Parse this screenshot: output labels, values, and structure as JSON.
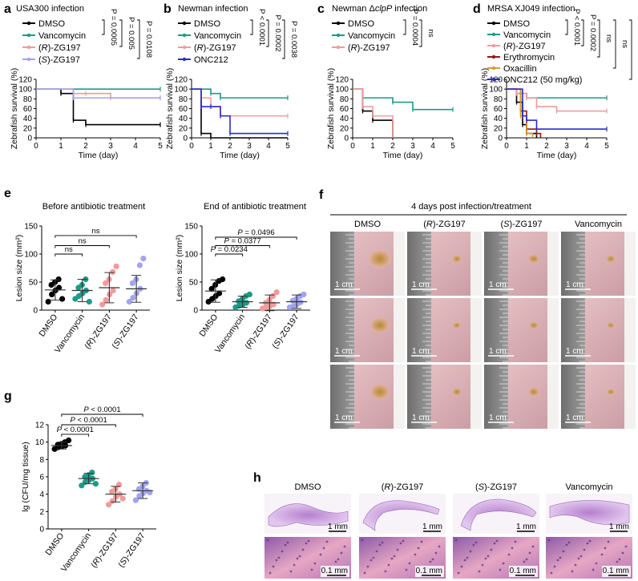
{
  "panels": {
    "a": {
      "letter": "a",
      "title": "USA300 infection",
      "stats": [
        "P = 0.0005",
        "P = 0.005",
        "P = 0.0108"
      ]
    },
    "b": {
      "letter": "b",
      "title": "Newman infection",
      "stats": [
        "P < 0.0001",
        "P = 0.0002",
        "P = 0.0038"
      ]
    },
    "c": {
      "letter": "c",
      "title": "Newman ΔclpP infection",
      "stats": [
        "P = 0.0004",
        "ns"
      ]
    },
    "d": {
      "letter": "d",
      "title": "MRSA XJ049 infection",
      "stats": [
        "P < 0.0001",
        "P = 0.0002",
        "ns",
        "ns",
        "ns"
      ]
    },
    "e": {
      "letter": "e",
      "left_title": "Before antibiotic treatment",
      "right_title": "End of antibiotic treatment",
      "left_stats": [
        "ns",
        "ns",
        "ns"
      ],
      "right_stats": [
        "P = 0.0234",
        "P = 0.0377",
        "P = 0.0496"
      ]
    },
    "f": {
      "letter": "f",
      "header": "4 days post infection/treatment",
      "columns": [
        "DMSO",
        "(R)-ZG197",
        "(S)-ZG197",
        "Vancomycin"
      ],
      "scale": "1 cm"
    },
    "g": {
      "letter": "g",
      "stats": [
        "P < 0.0001",
        "P < 0.0001",
        "P < 0.0001"
      ]
    },
    "h": {
      "letter": "h",
      "columns": [
        "DMSO",
        "(R)-ZG197",
        "(S)-ZG197",
        "Vancomycin"
      ],
      "scale_top": "1 mm",
      "scale_bottom": "0.1 mm"
    }
  },
  "colors": {
    "DMSO": "#000000",
    "Vancomycin": "#1e9a86",
    "R": "#f39a9a",
    "S": "#a3a3ee",
    "Erythromycin": "#8b1a1a",
    "Oxacillin": "#d89b2c",
    "ONC212": "#2b2bd0"
  },
  "chart_data": [
    {
      "id": "a",
      "type": "line",
      "step": true,
      "xlabel": "Time (day)",
      "ylabel": "Zebrafish survival (%)",
      "xlim": [
        0,
        5
      ],
      "ylim": [
        0,
        120
      ],
      "xticks": [
        0,
        1,
        2,
        3,
        4,
        5
      ],
      "yticks": [
        0,
        20,
        40,
        60,
        80,
        100,
        120
      ],
      "series": [
        {
          "name": "DMSO",
          "color": "#000000",
          "x": [
            0,
            1.0,
            1.5,
            2.0,
            5
          ],
          "y": [
            100,
            91,
            36,
            27,
            27
          ]
        },
        {
          "name": "Vancomycin",
          "color": "#1e9a86",
          "x": [
            0,
            5
          ],
          "y": [
            100,
            100
          ]
        },
        {
          "name": "(R)-ZG197",
          "color": "#f39a9a",
          "x": [
            0,
            1.5,
            2.0,
            3.0,
            5
          ],
          "y": [
            100,
            91,
            91,
            82,
            82
          ]
        },
        {
          "name": "(S)-ZG197",
          "color": "#a3a3ee",
          "x": [
            0,
            1.5,
            5
          ],
          "y": [
            100,
            82,
            82
          ]
        }
      ]
    },
    {
      "id": "b",
      "type": "line",
      "step": true,
      "xlabel": "Time (day)",
      "ylabel": "Zebrafish survival (%)",
      "xlim": [
        0,
        5
      ],
      "ylim": [
        0,
        120
      ],
      "xticks": [
        0,
        1,
        2,
        3,
        4,
        5
      ],
      "yticks": [
        0,
        20,
        40,
        60,
        80,
        100,
        120
      ],
      "series": [
        {
          "name": "DMSO",
          "color": "#000000",
          "x": [
            0,
            0.5,
            1.0,
            5
          ],
          "y": [
            100,
            9,
            0,
            0
          ]
        },
        {
          "name": "Vancomycin",
          "color": "#1e9a86",
          "x": [
            0,
            1.0,
            1.5,
            5
          ],
          "y": [
            100,
            91,
            82,
            82
          ]
        },
        {
          "name": "(R)-ZG197",
          "color": "#f39a9a",
          "x": [
            0,
            0.5,
            1.0,
            1.5,
            5
          ],
          "y": [
            100,
            82,
            64,
            45,
            45
          ]
        },
        {
          "name": "ONC212",
          "color": "#2b2bd0",
          "x": [
            0,
            0.5,
            1.0,
            1.5,
            2.0,
            5
          ],
          "y": [
            100,
            64,
            64,
            45,
            9,
            9
          ]
        }
      ]
    },
    {
      "id": "c",
      "type": "line",
      "step": true,
      "xlabel": "Time (day)",
      "ylabel": "Zebrafish survival (%)",
      "xlim": [
        0,
        5
      ],
      "ylim": [
        0,
        120
      ],
      "xticks": [
        0,
        1,
        2,
        3,
        4,
        5
      ],
      "yticks": [
        0,
        20,
        40,
        60,
        80,
        100,
        120
      ],
      "series": [
        {
          "name": "DMSO",
          "color": "#000000",
          "x": [
            0,
            0.5,
            1.0,
            2.0
          ],
          "y": [
            100,
            55,
            36,
            0
          ]
        },
        {
          "name": "Vancomycin",
          "color": "#1e9a86",
          "x": [
            0,
            0.5,
            2.0,
            3.0,
            5
          ],
          "y": [
            100,
            82,
            73,
            58,
            58
          ]
        },
        {
          "name": "(R)-ZG197",
          "color": "#f39a9a",
          "x": [
            0,
            0.5,
            1.0,
            2.0
          ],
          "y": [
            100,
            64,
            45,
            0
          ]
        }
      ]
    },
    {
      "id": "d",
      "type": "line",
      "step": true,
      "xlabel": "Time (day)",
      "ylabel": "Zebrafish survival (%)",
      "xlim": [
        0,
        5
      ],
      "ylim": [
        0,
        120
      ],
      "xticks": [
        0,
        1,
        2,
        3,
        4,
        5
      ],
      "yticks": [
        0,
        20,
        40,
        60,
        80,
        100,
        120
      ],
      "series": [
        {
          "name": "DMSO",
          "color": "#000000",
          "x": [
            0,
            0.5,
            0.8,
            1.0,
            1.5
          ],
          "y": [
            100,
            73,
            27,
            9,
            0
          ]
        },
        {
          "name": "Vancomycin",
          "color": "#1e9a86",
          "x": [
            0,
            0.5,
            1.0,
            5
          ],
          "y": [
            100,
            91,
            82,
            82
          ]
        },
        {
          "name": "(R)-ZG197",
          "color": "#f39a9a",
          "x": [
            0,
            0.5,
            1.0,
            1.5,
            2.5,
            5
          ],
          "y": [
            100,
            91,
            82,
            64,
            55,
            55
          ]
        },
        {
          "name": "Erythromycin",
          "color": "#8b1a1a",
          "x": [
            0,
            0.7,
            1.0,
            1.5,
            1.7
          ],
          "y": [
            100,
            55,
            18,
            9,
            0
          ]
        },
        {
          "name": "Oxacillin",
          "color": "#d89b2c",
          "x": [
            0,
            0.7,
            1.0,
            1.3
          ],
          "y": [
            100,
            45,
            9,
            0
          ]
        },
        {
          "name": "ONC212 (50 mg/kg)",
          "color": "#2b2bd0",
          "x": [
            0,
            0.8,
            1.0,
            1.5,
            5
          ],
          "y": [
            100,
            45,
            36,
            18,
            18
          ]
        }
      ]
    },
    {
      "id": "e1",
      "type": "scatter",
      "ylabel": "Lesion size (mm²)",
      "ylim": [
        0,
        150
      ],
      "yticks": [
        0,
        50,
        100,
        150
      ],
      "categories": [
        "DMSO",
        "Vancomycin",
        "(R)-ZG197",
        "(S)-ZG197"
      ],
      "colors": [
        "#000000",
        "#1e9a86",
        "#f39a9a",
        "#a3a3ee"
      ],
      "means": [
        36,
        35,
        40,
        38
      ],
      "sd": [
        18,
        20,
        27,
        24
      ],
      "points": [
        [
          15,
          28,
          35,
          40,
          45,
          50,
          55,
          20
        ],
        [
          20,
          25,
          30,
          35,
          40,
          45,
          55,
          15
        ],
        [
          10,
          18,
          28,
          35,
          48,
          55,
          68,
          78
        ],
        [
          15,
          22,
          30,
          38,
          48,
          55,
          80,
          92
        ]
      ]
    },
    {
      "id": "e2",
      "type": "scatter",
      "ylabel": "Lesion size (mm²)",
      "ylim": [
        0,
        150
      ],
      "yticks": [
        0,
        50,
        100,
        150
      ],
      "categories": [
        "DMSO",
        "Vancomycin",
        "(R)-ZG197",
        "(S)-ZG197"
      ],
      "colors": [
        "#000000",
        "#1e9a86",
        "#f39a9a",
        "#a3a3ee"
      ],
      "means": [
        34,
        15,
        13,
        15
      ],
      "sd": [
        20,
        10,
        14,
        12
      ],
      "points": [
        [
          15,
          20,
          25,
          30,
          38,
          45,
          52,
          55
        ],
        [
          5,
          8,
          10,
          13,
          16,
          20,
          25,
          28
        ],
        [
          3,
          5,
          7,
          10,
          13,
          18,
          25,
          32
        ],
        [
          5,
          7,
          10,
          14,
          17,
          20,
          25,
          28
        ]
      ]
    },
    {
      "id": "g",
      "type": "scatter",
      "ylabel": "lg (CFU/mg tissue)",
      "ylim": [
        0,
        12
      ],
      "yticks": [
        0,
        2,
        4,
        6,
        8,
        10,
        12
      ],
      "categories": [
        "DMSO",
        "Vancomycin",
        "(R)-ZG197",
        "(S)-ZG197"
      ],
      "colors": [
        "#000000",
        "#1e9a86",
        "#f39a9a",
        "#a3a3ee"
      ],
      "means": [
        9.6,
        5.8,
        4.0,
        4.4
      ],
      "sd": [
        0.4,
        0.6,
        0.9,
        0.9
      ],
      "points": [
        [
          9.2,
          9.4,
          9.5,
          9.6,
          9.7,
          9.8,
          10.0,
          10.2
        ],
        [
          5.0,
          5.4,
          5.6,
          5.8,
          6.0,
          6.2,
          6.5,
          5.2
        ],
        [
          2.8,
          3.2,
          3.7,
          4.0,
          4.3,
          4.6,
          5.1,
          3.5
        ],
        [
          3.3,
          3.8,
          4.1,
          4.4,
          4.6,
          4.9,
          5.3,
          4.2
        ]
      ]
    }
  ]
}
